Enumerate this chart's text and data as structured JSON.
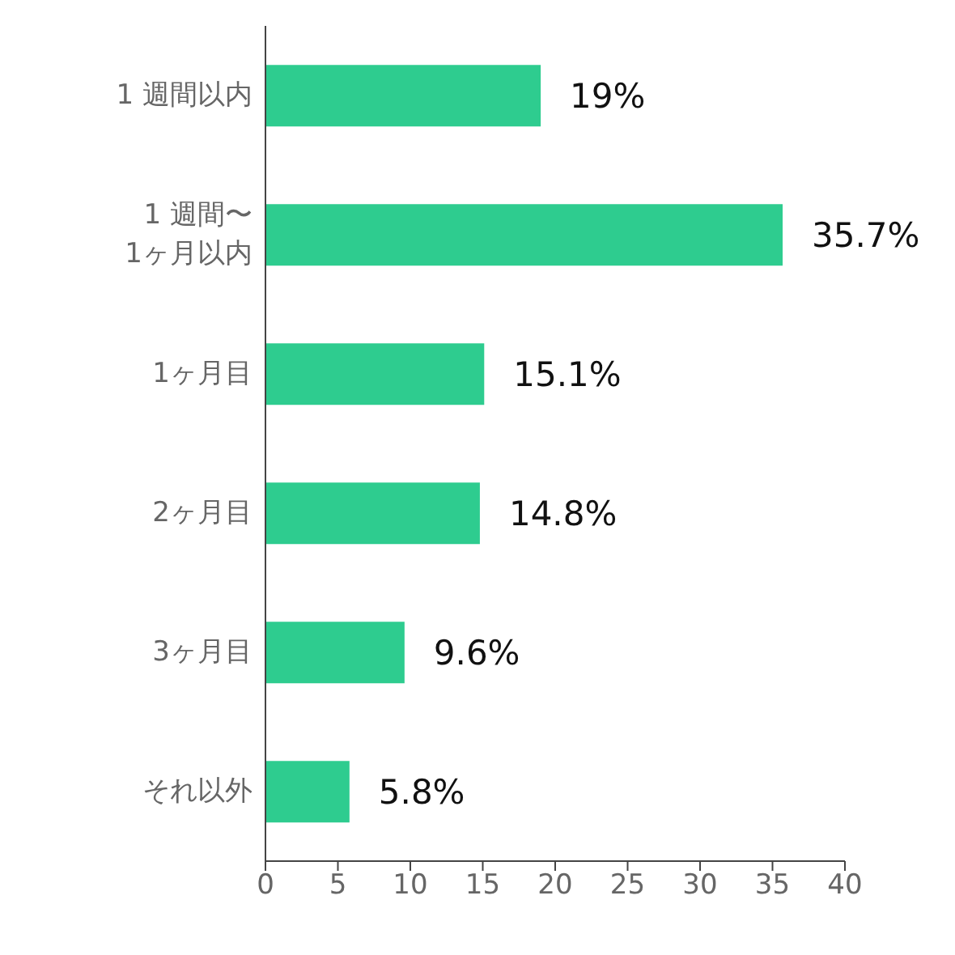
{
  "chart_data": {
    "type": "bar",
    "orientation": "horizontal",
    "categories": [
      "1 週間以内",
      "1 週間〜\n1ヶ月以内",
      "1ヶ月目",
      "2ヶ月目",
      "3ヶ月目",
      "それ以外"
    ],
    "values": [
      19,
      35.7,
      15.1,
      14.8,
      9.6,
      5.8
    ],
    "value_labels": [
      "19%",
      "35.7%",
      "15.1%",
      "14.8%",
      "9.6%",
      "5.8%"
    ],
    "color": "#2ecc8f",
    "xlim": [
      0,
      40
    ],
    "xticks": [
      0,
      5,
      10,
      15,
      20,
      25,
      30,
      35,
      40
    ],
    "grid": false,
    "legend": false
  }
}
